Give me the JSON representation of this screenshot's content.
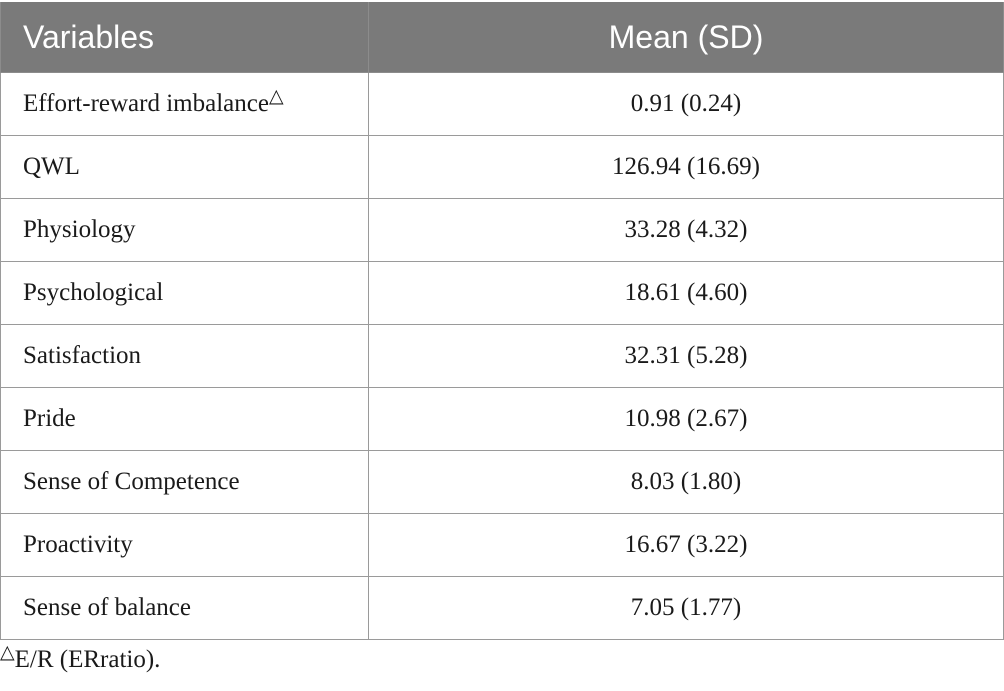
{
  "table": {
    "headers": [
      "Variables",
      "Mean (SD)"
    ],
    "rows": [
      {
        "variable": "Effort-reward imbalance",
        "marker": "△",
        "value": "0.91 (0.24)"
      },
      {
        "variable": "QWL",
        "marker": "",
        "value": "126.94 (16.69)"
      },
      {
        "variable": "Physiology",
        "marker": "",
        "value": "33.28 (4.32)"
      },
      {
        "variable": "Psychological",
        "marker": "",
        "value": "18.61 (4.60)"
      },
      {
        "variable": "Satisfaction",
        "marker": "",
        "value": "32.31 (5.28)"
      },
      {
        "variable": "Pride",
        "marker": "",
        "value": "10.98 (2.67)"
      },
      {
        "variable": "Sense of Competence",
        "marker": "",
        "value": "8.03 (1.80)"
      },
      {
        "variable": "Proactivity",
        "marker": "",
        "value": "16.67 (3.22)"
      },
      {
        "variable": "Sense of balance",
        "marker": "",
        "value": "7.05 (1.77)"
      }
    ]
  },
  "footnote": {
    "marker": "△",
    "text": "E/R (ERratio)."
  }
}
